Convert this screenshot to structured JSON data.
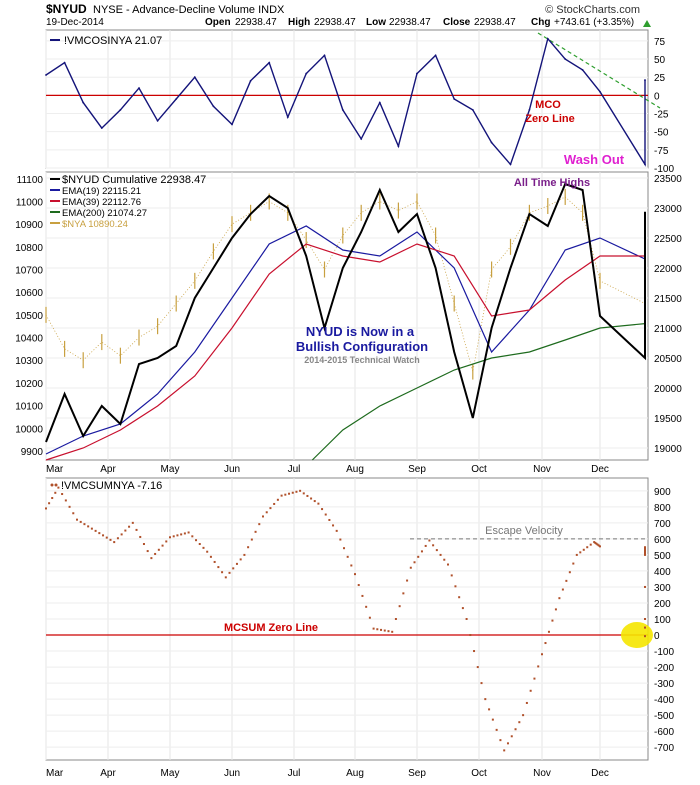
{
  "header": {
    "symbol": "$NYUD",
    "description": "NYSE - Advance-Decline Volume INDX",
    "brand": "© StockCharts.com",
    "date": "19-Dec-2014",
    "open_label": "Open",
    "open": "22938.47",
    "high_label": "High",
    "high": "22938.47",
    "low_label": "Low",
    "low": "22938.47",
    "close_label": "Close",
    "close": "22938.47",
    "chg_label": "Chg",
    "chg": "+743.61 (+3.35%)"
  },
  "colors": {
    "navy": "#14147a",
    "zero_line": "#cc0000",
    "ema19": "#1a1aa0",
    "ema39": "#c8102e",
    "ema200": "#1e6b1e",
    "nya": "#c8a040",
    "trend_dash": "#2e9e2e",
    "sum_dots": "#b0502a",
    "highlight": "#f5e600",
    "magenta": "#e020d0",
    "purple": "#7a1f8a",
    "price_black": "#000000"
  },
  "months": [
    "Mar",
    "Apr",
    "May",
    "Jun",
    "Jul",
    "Aug",
    "Sep",
    "Oct",
    "Nov",
    "Dec"
  ],
  "chart_data": [
    {
      "type": "line",
      "name": "!VMCOSINYA",
      "legend": "!VMCOSINYA 21.07",
      "last_value": 21.07,
      "ylim": [
        -100,
        90
      ],
      "yticks": [
        75,
        50,
        25,
        0,
        -25,
        -50,
        -75,
        -100
      ],
      "x_months": [
        "Mar",
        "Apr",
        "May",
        "Jun",
        "Jul",
        "Aug",
        "Sep",
        "Oct",
        "Nov",
        "Dec"
      ],
      "x": [
        0,
        0.3,
        0.6,
        0.9,
        1.2,
        1.5,
        1.8,
        2.1,
        2.4,
        2.7,
        3.0,
        3.3,
        3.6,
        3.9,
        4.2,
        4.5,
        4.8,
        5.1,
        5.4,
        5.7,
        6.0,
        6.3,
        6.6,
        6.9,
        7.2,
        7.5,
        7.8,
        8.1,
        8.4,
        8.7,
        9.0,
        9.3,
        9.6
      ],
      "values": [
        28,
        45,
        -10,
        -45,
        -20,
        10,
        -35,
        -5,
        25,
        -15,
        -40,
        20,
        45,
        -30,
        30,
        55,
        -20,
        -60,
        -10,
        -70,
        30,
        55,
        -5,
        -20,
        -65,
        -95,
        -20,
        78,
        50,
        35,
        5,
        -95,
        21.07
      ],
      "annotations": [
        {
          "text": "MCO",
          "color": "#cc0000"
        },
        {
          "text": "Zero Line",
          "color": "#cc0000"
        },
        {
          "text": "Wash Out",
          "color": "#e020d0"
        }
      ]
    },
    {
      "type": "line",
      "name": "$NYUD Cumulative",
      "legend": [
        {
          "label": "$NYUD Cumulative 22938.47",
          "color": "#000000"
        },
        {
          "label": "EMA(19) 22115.21",
          "color": "#1a1aa0"
        },
        {
          "label": "EMA(39) 22112.76",
          "color": "#c8102e"
        },
        {
          "label": "EMA(200) 21074.27",
          "color": "#1e6b1e"
        },
        {
          "label": "$NYA 10890.24",
          "color": "#c8a040"
        }
      ],
      "left_axis_label": "$NYA",
      "left_ylim": [
        9860,
        11130
      ],
      "left_yticks": [
        11100,
        11000,
        10900,
        10800,
        10700,
        10600,
        10500,
        10400,
        10300,
        10200,
        10100,
        10000,
        9900
      ],
      "right_ylim": [
        18800,
        23600
      ],
      "right_yticks": [
        23500,
        23000,
        22500,
        22000,
        21500,
        21000,
        20500,
        20000,
        19500,
        19000
      ],
      "x_months": [
        "Mar",
        "Apr",
        "May",
        "Jun",
        "Jul",
        "Aug",
        "Sep",
        "Oct",
        "Nov",
        "Dec"
      ],
      "series": [
        {
          "name": "$NYUD Cumulative",
          "x": [
            0,
            0.3,
            0.6,
            0.9,
            1.2,
            1.5,
            1.8,
            2.1,
            2.4,
            2.7,
            3.0,
            3.3,
            3.6,
            3.9,
            4.2,
            4.5,
            4.8,
            5.1,
            5.4,
            5.7,
            6.0,
            6.3,
            6.6,
            6.9,
            7.2,
            7.5,
            7.8,
            8.1,
            8.4,
            8.7,
            9.0,
            9.3,
            9.6
          ],
          "values": [
            19100,
            19900,
            19200,
            19700,
            19400,
            20400,
            20500,
            20700,
            21500,
            22000,
            22500,
            22900,
            23200,
            23000,
            22200,
            21000,
            22000,
            22600,
            23300,
            22600,
            22900,
            22000,
            20600,
            19500,
            21000,
            22000,
            22900,
            22700,
            23400,
            23300,
            21200,
            20500,
            22938
          ]
        },
        {
          "name": "EMA(19)",
          "x": [
            0,
            0.6,
            1.2,
            1.8,
            2.4,
            3.0,
            3.6,
            4.2,
            4.8,
            5.4,
            6.0,
            6.6,
            7.2,
            7.8,
            8.4,
            9.0,
            9.3,
            9.6
          ],
          "values": [
            18900,
            19200,
            19400,
            19900,
            20600,
            21500,
            22400,
            22700,
            22300,
            22200,
            22600,
            22000,
            20600,
            21300,
            22300,
            22500,
            22150,
            22115
          ]
        },
        {
          "name": "EMA(39)",
          "x": [
            0,
            0.6,
            1.2,
            1.8,
            2.4,
            3.0,
            3.6,
            4.2,
            4.8,
            5.4,
            6.0,
            6.6,
            7.2,
            7.8,
            8.4,
            9.0,
            9.3,
            9.6
          ],
          "values": [
            18800,
            19000,
            19300,
            19700,
            20200,
            21000,
            21900,
            22400,
            22200,
            22100,
            22400,
            22200,
            21200,
            21300,
            21800,
            22200,
            22200,
            22113
          ]
        },
        {
          "name": "EMA(200)",
          "x": [
            4.3,
            4.8,
            5.4,
            6.0,
            6.6,
            7.2,
            7.8,
            8.4,
            9.0,
            9.6
          ],
          "values": [
            18800,
            19300,
            19700,
            20000,
            20300,
            20500,
            20600,
            20800,
            21000,
            21074
          ]
        },
        {
          "name": "$NYA",
          "x": [
            0,
            0.3,
            0.6,
            0.9,
            1.2,
            1.5,
            1.8,
            2.1,
            2.4,
            2.7,
            3.0,
            3.3,
            3.6,
            3.9,
            4.2,
            4.5,
            4.8,
            5.1,
            5.4,
            5.7,
            6.0,
            6.3,
            6.6,
            6.9,
            7.2,
            7.5,
            7.8,
            8.1,
            8.4,
            8.7,
            9.0,
            9.3,
            9.6
          ],
          "values": [
            10500,
            10350,
            10300,
            10380,
            10320,
            10400,
            10450,
            10550,
            10650,
            10780,
            10900,
            10950,
            11000,
            10950,
            10830,
            10700,
            10850,
            10950,
            11000,
            10960,
            11000,
            10850,
            10550,
            10250,
            10700,
            10800,
            10950,
            10980,
            11020,
            10950,
            10650,
            10550,
            10890
          ]
        }
      ],
      "annotations": [
        {
          "text": "All Time Highs",
          "color": "#7a1f8a"
        },
        {
          "text": "NYUD is Now in a",
          "color": "#1a1aa0"
        },
        {
          "text": "Bullish Configuration",
          "color": "#1a1aa0"
        },
        {
          "text": "2014-2015 Technical Watch",
          "color": "#888888"
        }
      ]
    },
    {
      "type": "scatter",
      "name": "!VMCSUMNYA",
      "legend": "!VMCSUMNYA -7.16",
      "last_value": -7.16,
      "ylim": [
        -780,
        980
      ],
      "yticks": [
        900,
        800,
        700,
        600,
        500,
        400,
        300,
        200,
        100,
        0,
        -100,
        -200,
        -300,
        -400,
        -500,
        -600,
        -700
      ],
      "x_months": [
        "Mar",
        "Apr",
        "May",
        "Jun",
        "Jul",
        "Aug",
        "Sep",
        "Oct",
        "Nov",
        "Dec"
      ],
      "x": [
        0,
        0.2,
        0.5,
        0.8,
        1.1,
        1.4,
        1.7,
        2.0,
        2.3,
        2.6,
        2.9,
        3.2,
        3.5,
        3.8,
        4.1,
        4.4,
        4.7,
        5.0,
        5.3,
        5.6,
        5.9,
        6.2,
        6.5,
        6.8,
        7.1,
        7.4,
        7.7,
        8.0,
        8.3,
        8.6,
        8.9,
        9.2,
        9.4,
        9.6
      ],
      "values": [
        790,
        920,
        720,
        650,
        580,
        700,
        480,
        610,
        640,
        520,
        360,
        500,
        740,
        870,
        900,
        820,
        650,
        380,
        40,
        20,
        420,
        590,
        440,
        100,
        -400,
        -720,
        -500,
        -120,
        230,
        500,
        580,
        500,
        100,
        -7.16
      ],
      "reference_lines": [
        {
          "value": 600,
          "label": "Escape Velocity",
          "style": "dashed",
          "color": "#777777"
        },
        {
          "value": 0,
          "label": "MCSUM Zero Line",
          "style": "solid",
          "color": "#cc0000"
        }
      ]
    }
  ]
}
